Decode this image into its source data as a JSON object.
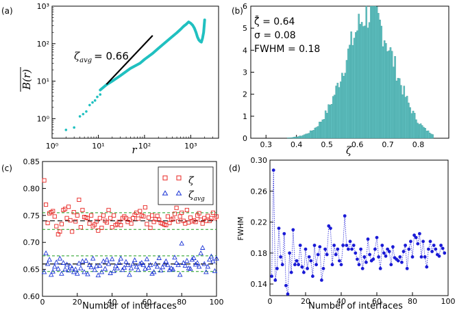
{
  "figure": {
    "panel_labels": [
      "(a)",
      "(b)",
      "(c)",
      "(d)"
    ]
  },
  "chart_data": [
    {
      "id": "a",
      "type": "scatter",
      "scale": "log-log",
      "xlabel": "r",
      "ylabel": "B(r)",
      "xlim": [
        1,
        4000
      ],
      "ylim": [
        0.3,
        1000
      ],
      "xticks": [
        1,
        10,
        100,
        1000
      ],
      "xtick_labels": [
        "10⁰",
        "10¹",
        "10²",
        "10³"
      ],
      "yticks": [
        1,
        10,
        100,
        1000
      ],
      "ytick_labels": [
        "10⁰",
        "10¹",
        "10²",
        "10³"
      ],
      "annotation": {
        "symbol": "ζ",
        "subscript": "avg",
        "value": "= 0.66"
      },
      "colors": {
        "points": "#20c0c0",
        "fit": "#000000"
      },
      "fit_line": {
        "x": [
          15,
          150
        ],
        "y": [
          8.2,
          165
        ],
        "slope": 0.66
      },
      "scatter_points": {
        "x": [
          2,
          3,
          4,
          4.7,
          5.5,
          6.5,
          7.5,
          8.5,
          9.5,
          11
        ],
        "y": [
          0.5,
          0.58,
          1.15,
          1.32,
          1.55,
          2.3,
          2.7,
          3.05,
          3.8,
          4.4
        ]
      },
      "dense_curve": {
        "x": [
          11,
          15,
          20,
          30,
          50,
          80,
          100,
          150,
          200,
          300,
          400,
          500,
          600,
          700,
          800,
          900,
          1000,
          1100,
          1200,
          1300,
          1400,
          1500,
          1600,
          1700,
          1800,
          1900,
          2000
        ],
        "y": [
          5.8,
          8,
          10,
          14,
          22,
          30,
          38,
          55,
          75,
          115,
          155,
          195,
          240,
          290,
          330,
          380,
          350,
          310,
          260,
          200,
          150,
          125,
          115,
          110,
          140,
          200,
          430
        ]
      }
    },
    {
      "id": "b",
      "type": "bar",
      "xlabel": "ζ",
      "xlim": [
        0.25,
        0.9
      ],
      "xticks": [
        0.3,
        0.4,
        0.5,
        0.6,
        0.7,
        0.8
      ],
      "ylim": [
        0,
        6
      ],
      "yticks": [
        0,
        1,
        2,
        3,
        4,
        5,
        6
      ],
      "stats": [
        "ζ̄ = 0.64",
        "σ = 0.08",
        "FWHM = 0.18"
      ],
      "color": "#5fbfbf",
      "edge_color": "#2a8a8a",
      "histogram": {
        "mean": 0.64,
        "sigma": 0.08,
        "peak": 5.65,
        "bin_start": 0.28,
        "bin_end": 0.85,
        "bin_count": 115
      }
    },
    {
      "id": "c",
      "type": "scatter",
      "xlabel": "Number of interfaces",
      "xlim": [
        0,
        100
      ],
      "xticks": [
        0,
        20,
        40,
        60,
        80,
        100
      ],
      "ylim": [
        0.6,
        0.85
      ],
      "yticks": [
        0.6,
        0.65,
        0.7,
        0.75,
        0.8,
        0.85
      ],
      "legend_position": "top-right",
      "legend": [
        {
          "symbol": "ζ̄",
          "marker": "square",
          "color": "#e8231f"
        },
        {
          "symbol": "ζ",
          "subscript": "avg",
          "marker": "triangle",
          "color": "#1a33d6"
        }
      ],
      "reference_lines": {
        "black_dashed": [
          0.74,
          0.66
        ],
        "green_dashed": [
          0.755,
          0.724,
          0.675,
          0.646
        ]
      },
      "series": [
        {
          "name": "ζ̄",
          "marker": "square",
          "x": [
            1,
            2,
            3,
            4,
            5,
            6,
            7,
            8,
            9,
            10,
            11,
            12,
            13,
            14,
            15,
            16,
            17,
            18,
            19,
            20,
            21,
            22,
            23,
            24,
            25,
            26,
            27,
            28,
            29,
            30,
            31,
            32,
            33,
            34,
            35,
            36,
            37,
            38,
            39,
            40,
            41,
            42,
            43,
            44,
            45,
            46,
            47,
            48,
            49,
            50,
            51,
            52,
            53,
            54,
            55,
            56,
            57,
            58,
            59,
            60,
            61,
            62,
            63,
            64,
            65,
            66,
            67,
            68,
            69,
            70,
            71,
            72,
            73,
            74,
            75,
            76,
            77,
            78,
            79,
            80,
            81,
            82,
            83,
            84,
            85,
            86,
            87,
            88,
            89,
            90,
            91,
            92,
            93,
            94,
            95,
            96,
            97,
            98,
            99,
            100
          ],
          "values": [
            0.815,
            0.77,
            0.736,
            0.754,
            0.756,
            0.758,
            0.748,
            0.73,
            0.715,
            0.72,
            0.734,
            0.76,
            0.762,
            0.745,
            0.766,
            0.741,
            0.72,
            0.756,
            0.739,
            0.75,
            0.779,
            0.728,
            0.76,
            0.747,
            0.746,
            0.745,
            0.735,
            0.75,
            0.73,
            0.733,
            0.739,
            0.722,
            0.745,
            0.727,
            0.75,
            0.74,
            0.737,
            0.76,
            0.745,
            0.728,
            0.75,
            0.732,
            0.734,
            0.738,
            0.732,
            0.745,
            0.748,
            0.745,
            0.738,
            0.742,
            0.735,
            0.745,
            0.751,
            0.755,
            0.744,
            0.758,
            0.75,
            0.748,
            0.765,
            0.734,
            0.746,
            0.727,
            0.75,
            0.738,
            0.743,
            0.749,
            0.742,
            0.736,
            0.735,
            0.733,
            0.732,
            0.748,
            0.736,
            0.742,
            0.744,
            0.753,
            0.764,
            0.739,
            0.748,
            0.755,
            0.74,
            0.735,
            0.76,
            0.737,
            0.746,
            0.739,
            0.741,
            0.738,
            0.75,
            0.754,
            0.742,
            0.735,
            0.745,
            0.74,
            0.749,
            0.74,
            0.745,
            0.755,
            0.745,
            0.748
          ]
        },
        {
          "name": "ζavg",
          "marker": "triangle",
          "x": [
            1,
            2,
            3,
            4,
            5,
            6,
            7,
            8,
            9,
            10,
            11,
            12,
            13,
            14,
            15,
            16,
            17,
            18,
            19,
            20,
            21,
            22,
            23,
            24,
            25,
            26,
            27,
            28,
            29,
            30,
            31,
            32,
            33,
            34,
            35,
            36,
            37,
            38,
            39,
            40,
            41,
            42,
            43,
            44,
            45,
            46,
            47,
            48,
            49,
            50,
            51,
            52,
            53,
            54,
            55,
            56,
            57,
            58,
            59,
            60,
            61,
            62,
            63,
            64,
            65,
            66,
            67,
            68,
            69,
            70,
            71,
            72,
            73,
            74,
            75,
            76,
            77,
            78,
            79,
            80,
            81,
            82,
            83,
            84,
            85,
            86,
            87,
            88,
            89,
            90,
            91,
            92,
            93,
            94,
            95,
            96,
            97,
            98,
            99,
            100
          ],
          "values": [
            0.645,
            0.68,
            0.66,
            0.668,
            0.64,
            0.646,
            0.655,
            0.663,
            0.651,
            0.67,
            0.642,
            0.662,
            0.65,
            0.659,
            0.648,
            0.656,
            0.652,
            0.645,
            0.65,
            0.642,
            0.661,
            0.652,
            0.665,
            0.645,
            0.666,
            0.641,
            0.658,
            0.654,
            0.67,
            0.649,
            0.656,
            0.639,
            0.657,
            0.645,
            0.665,
            0.651,
            0.668,
            0.66,
            0.643,
            0.669,
            0.647,
            0.656,
            0.652,
            0.662,
            0.67,
            0.649,
            0.653,
            0.664,
            0.658,
            0.64,
            0.652,
            0.66,
            0.667,
            0.655,
            0.649,
            0.66,
            0.662,
            0.658,
            0.651,
            0.669,
            0.653,
            0.658,
            0.642,
            0.645,
            0.66,
            0.655,
            0.671,
            0.648,
            0.654,
            0.66,
            0.665,
            0.658,
            0.649,
            0.652,
            0.65,
            0.672,
            0.662,
            0.658,
            0.64,
            0.698,
            0.662,
            0.657,
            0.666,
            0.652,
            0.651,
            0.668,
            0.671,
            0.659,
            0.662,
            0.655,
            0.68,
            0.69,
            0.66,
            0.645,
            0.655,
            0.668,
            0.674,
            0.665,
            0.647,
            0.67
          ]
        }
      ]
    },
    {
      "id": "d",
      "type": "line",
      "xlabel": "Number of interfaces",
      "ylabel": "FWHM",
      "xlim": [
        0,
        100
      ],
      "xticks": [
        0,
        20,
        40,
        60,
        80,
        100
      ],
      "ylim": [
        0.125,
        0.3
      ],
      "yticks": [
        0.14,
        0.18,
        0.22,
        0.26,
        0.3
      ],
      "color": "#1a1ad6",
      "series": [
        {
          "name": "FWHM",
          "x": [
            1,
            2,
            3,
            4,
            5,
            6,
            7,
            8,
            9,
            10,
            11,
            12,
            13,
            14,
            15,
            16,
            17,
            18,
            19,
            20,
            21,
            22,
            23,
            24,
            25,
            26,
            27,
            28,
            29,
            30,
            31,
            32,
            33,
            34,
            35,
            36,
            37,
            38,
            39,
            40,
            41,
            42,
            43,
            44,
            45,
            46,
            47,
            48,
            49,
            50,
            51,
            52,
            53,
            54,
            55,
            56,
            57,
            58,
            59,
            60,
            61,
            62,
            63,
            64,
            65,
            66,
            67,
            68,
            69,
            70,
            71,
            72,
            73,
            74,
            75,
            76,
            77,
            78,
            79,
            80,
            81,
            82,
            83,
            84,
            85,
            86,
            87,
            88,
            89,
            90,
            91,
            92,
            93,
            94,
            95,
            96,
            97,
            98
          ],
          "values": [
            0.15,
            0.287,
            0.145,
            0.16,
            0.212,
            0.175,
            0.165,
            0.205,
            0.138,
            0.127,
            0.18,
            0.155,
            0.21,
            0.165,
            0.17,
            0.165,
            0.19,
            0.162,
            0.155,
            0.185,
            0.16,
            0.175,
            0.17,
            0.15,
            0.19,
            0.165,
            0.178,
            0.188,
            0.145,
            0.16,
            0.185,
            0.178,
            0.215,
            0.212,
            0.165,
            0.19,
            0.178,
            0.185,
            0.17,
            0.165,
            0.19,
            0.228,
            0.19,
            0.185,
            0.195,
            0.185,
            0.19,
            0.18,
            0.172,
            0.165,
            0.185,
            0.16,
            0.175,
            0.168,
            0.198,
            0.178,
            0.17,
            0.172,
            0.185,
            0.2,
            0.175,
            0.16,
            0.19,
            0.18,
            0.176,
            0.185,
            0.182,
            0.165,
            0.188,
            0.174,
            0.172,
            0.17,
            0.175,
            0.168,
            0.182,
            0.19,
            0.16,
            0.185,
            0.195,
            0.175,
            0.203,
            0.2,
            0.192,
            0.205,
            0.175,
            0.195,
            0.175,
            0.162,
            0.185,
            0.195,
            0.182,
            0.19,
            0.185,
            0.178,
            0.176,
            0.19,
            0.186,
            0.18
          ]
        }
      ]
    }
  ]
}
